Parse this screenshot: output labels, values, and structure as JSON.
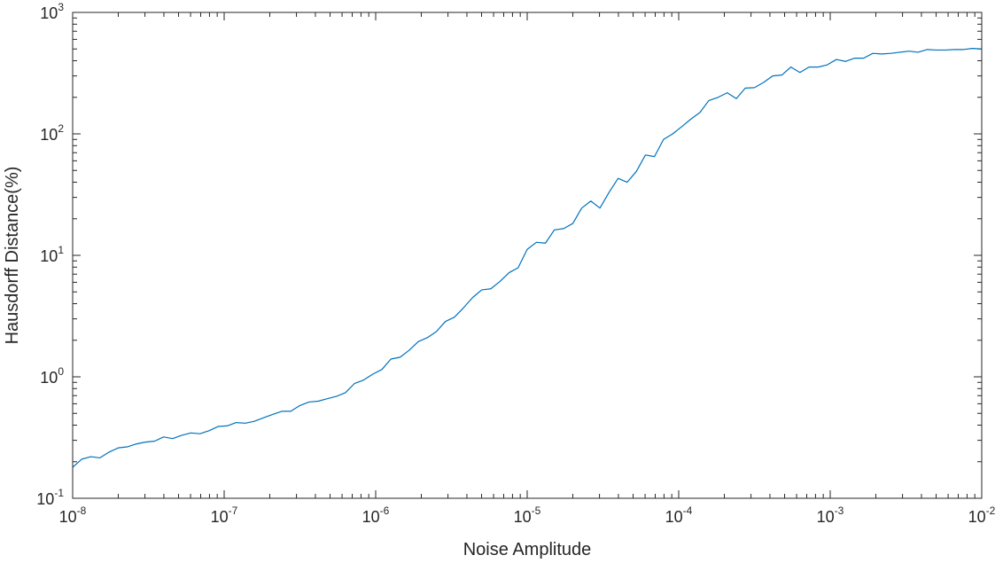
{
  "chart_data": {
    "type": "line",
    "xlabel": "Noise Amplitude",
    "ylabel": "Hausdorff Distance(%)",
    "x_scale": "log",
    "y_scale": "log",
    "xlim": [
      1e-08,
      0.01
    ],
    "ylim": [
      0.1,
      1000
    ],
    "grid": false,
    "legend": "none",
    "line_color": "#0072BD",
    "x_ticks": [
      {
        "base": "10",
        "exp": "-8",
        "value": 1e-08
      },
      {
        "base": "10",
        "exp": "-7",
        "value": 1e-07
      },
      {
        "base": "10",
        "exp": "-6",
        "value": 1e-06
      },
      {
        "base": "10",
        "exp": "-5",
        "value": 1e-05
      },
      {
        "base": "10",
        "exp": "-4",
        "value": 0.0001
      },
      {
        "base": "10",
        "exp": "-3",
        "value": 0.001
      },
      {
        "base": "10",
        "exp": "-2",
        "value": 0.01
      }
    ],
    "y_ticks": [
      {
        "base": "10",
        "exp": "-1",
        "value": 0.1
      },
      {
        "base": "10",
        "exp": "0",
        "value": 1
      },
      {
        "base": "10",
        "exp": "1",
        "value": 10
      },
      {
        "base": "10",
        "exp": "2",
        "value": 100
      },
      {
        "base": "10",
        "exp": "3",
        "value": 1000
      }
    ],
    "series": [
      {
        "x": [
          1e-08,
          1.15e-08,
          1.32e-08,
          1.51e-08,
          1.74e-08,
          2e-08,
          2.29e-08,
          2.63e-08,
          3.02e-08,
          3.47e-08,
          3.98e-08,
          4.57e-08,
          5.25e-08,
          6.03e-08,
          6.92e-08,
          7.94e-08,
          9.12e-08,
          1.05e-07,
          1.2e-07,
          1.38e-07,
          1.58e-07,
          1.82e-07,
          2.09e-07,
          2.4e-07,
          2.75e-07,
          3.16e-07,
          3.63e-07,
          4.17e-07,
          4.79e-07,
          5.5e-07,
          6.31e-07,
          7.24e-07,
          8.32e-07,
          9.55e-07,
          1.1e-06,
          1.26e-06,
          1.45e-06,
          1.66e-06,
          1.91e-06,
          2.19e-06,
          2.51e-06,
          2.88e-06,
          3.31e-06,
          3.8e-06,
          4.37e-06,
          5.01e-06,
          5.75e-06,
          6.61e-06,
          7.59e-06,
          8.71e-06,
          1e-05,
          1.15e-05,
          1.32e-05,
          1.51e-05,
          1.74e-05,
          2e-05,
          2.29e-05,
          2.63e-05,
          3.02e-05,
          3.47e-05,
          3.98e-05,
          4.57e-05,
          5.25e-05,
          6.03e-05,
          6.92e-05,
          7.94e-05,
          9.12e-05,
          0.000105,
          0.00012,
          0.000138,
          0.000158,
          0.000182,
          0.000209,
          0.00024,
          0.000275,
          0.000316,
          0.000363,
          0.000417,
          0.000479,
          0.00055,
          0.000631,
          0.000724,
          0.000832,
          0.000955,
          0.0011,
          0.00126,
          0.00145,
          0.00166,
          0.00191,
          0.00219,
          0.00251,
          0.00288,
          0.00331,
          0.0038,
          0.00437,
          0.00501,
          0.00575,
          0.00661,
          0.00759,
          0.00871,
          0.01
        ],
        "y": [
          0.18,
          0.21,
          0.22,
          0.215,
          0.24,
          0.26,
          0.265,
          0.28,
          0.29,
          0.295,
          0.32,
          0.31,
          0.33,
          0.345,
          0.34,
          0.36,
          0.39,
          0.395,
          0.42,
          0.415,
          0.43,
          0.46,
          0.49,
          0.52,
          0.52,
          0.58,
          0.62,
          0.63,
          0.66,
          0.69,
          0.74,
          0.88,
          0.94,
          1.05,
          1.15,
          1.4,
          1.45,
          1.65,
          1.95,
          2.1,
          2.35,
          2.85,
          3.1,
          3.7,
          4.5,
          5.2,
          5.3,
          6.1,
          7.2,
          7.9,
          11.2,
          12.8,
          12.6,
          16.2,
          16.6,
          18.3,
          24.5,
          28,
          24.5,
          33,
          43,
          40,
          49,
          67,
          65,
          90,
          100,
          115,
          132,
          150,
          188,
          200,
          218,
          195,
          238,
          240,
          265,
          300,
          305,
          355,
          320,
          355,
          355,
          370,
          410,
          395,
          420,
          420,
          460,
          455,
          460,
          470,
          480,
          470,
          495,
          490,
          490,
          495,
          495,
          505,
          500
        ]
      }
    ]
  }
}
